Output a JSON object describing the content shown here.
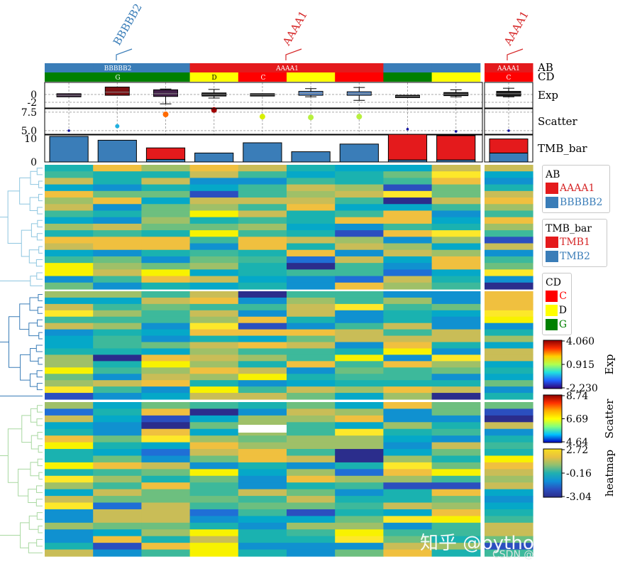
{
  "chart_data": {
    "type": "heatmap",
    "columns": 10,
    "column_groups": [
      {
        "name": "BBBBB2",
        "n": 3,
        "color": "#3a7db8"
      },
      {
        "name": "AAAA1",
        "n": 6,
        "color": "#e41a1c"
      },
      {
        "name": "AAAA1",
        "n": 1,
        "color": "#e41a1c",
        "split": true
      }
    ],
    "top_labels": [
      "BBBBB2",
      "AAAA1",
      "AAAA1"
    ],
    "annotation_rows": [
      "AB",
      "CD",
      "Exp",
      "Scatter",
      "TMB_bar"
    ],
    "AB": [
      "BBBBB2",
      "BBBBB2",
      "BBBBB2",
      "AAAA1",
      "AAAA1",
      "AAAA1",
      "AAAA1",
      "BBBBB2",
      "BBBBB2",
      "AAAA1"
    ],
    "CD": [
      "G",
      "G",
      "G",
      "D",
      "C",
      "D",
      "C",
      "G",
      "D",
      "C"
    ],
    "AB_labels_shown": [
      "BBBBB2",
      "AAAA1",
      "AAAA1"
    ],
    "CD_labels_shown": [
      "G",
      "D",
      "C",
      "C"
    ],
    "Exp": {
      "yticks": [
        "0",
        "-2"
      ],
      "boxes": [
        {
          "q1": -0.6,
          "median": -0.2,
          "q3": 0.2,
          "color": "#3a1f3d"
        },
        {
          "q1": -0.2,
          "median": 0.6,
          "q3": 1.9,
          "color": "#7a0f12"
        },
        {
          "q1": -0.5,
          "median": 0.2,
          "q3": 1.2,
          "lo": -2.4,
          "hi": 1.4,
          "color": "#44224a"
        },
        {
          "q1": -0.4,
          "median": 0.0,
          "q3": 0.4,
          "lo": -0.9,
          "hi": 1.3,
          "color": "#1a1a1a"
        },
        {
          "q1": -0.4,
          "median": -0.1,
          "q3": 0.2,
          "color": "#1a1a1a"
        },
        {
          "q1": -0.2,
          "median": 0.3,
          "q3": 0.8,
          "lo": -0.6,
          "hi": 1.5,
          "color": "#5a8ed0"
        },
        {
          "q1": -0.2,
          "median": 0.2,
          "q3": 0.7,
          "lo": -1.5,
          "hi": 1.8,
          "color": "#5a8ed0"
        },
        {
          "q1": -0.8,
          "median": -0.5,
          "q3": -0.2,
          "color": "#1a1a1a"
        },
        {
          "q1": -0.3,
          "median": 0.1,
          "q3": 0.5,
          "lo": -0.6,
          "hi": 1.2,
          "color": "#1a1a1a"
        },
        {
          "q1": -0.4,
          "median": 0.2,
          "q3": 0.8,
          "lo": -0.6,
          "hi": 1.6,
          "color": "#1a1a1a"
        }
      ]
    },
    "Scatter": {
      "yticks": [
        "7.5",
        "5.0"
      ],
      "values": [
        5.0,
        5.6,
        7.2,
        7.8,
        6.9,
        6.8,
        6.9,
        5.2,
        4.9,
        5.0
      ],
      "colors": [
        "#1010a0",
        "#20b0e0",
        "#ff6a00",
        "#a00000",
        "#d8f000",
        "#b8f040",
        "#b8f040",
        "#1010a0",
        "#1010a0",
        "#1010a0"
      ]
    },
    "TMB_bar": {
      "yticks": [
        "10",
        "0"
      ],
      "series": [
        {
          "name": "TMB1",
          "color": "#e41a1c"
        },
        {
          "name": "TMB2",
          "color": "#3a7db8"
        }
      ],
      "TMB2": [
        10,
        8.5,
        1.0,
        3.5,
        7.5,
        4.0,
        7.0,
        0.8,
        0.8,
        3.5
      ],
      "TMB1": [
        0,
        0,
        4.5,
        0,
        0,
        0,
        0,
        10,
        9.5,
        5.5
      ]
    },
    "heatmap": {
      "row_blocks": [
        19,
        17,
        23
      ],
      "range": [
        -3.04,
        2.72
      ]
    },
    "legends": {
      "AB": {
        "title": "AB",
        "items": [
          {
            "label": "AAAA1",
            "color": "#e41a1c"
          },
          {
            "label": "BBBBB2",
            "color": "#3a7db8"
          }
        ]
      },
      "TMB_bar": {
        "title": "TMB_bar",
        "items": [
          {
            "label": "TMB1",
            "color": "#e41a1c"
          },
          {
            "label": "TMB2",
            "color": "#3a7db8"
          }
        ]
      },
      "CD": {
        "title": "CD",
        "items": [
          {
            "label": "C",
            "color": "#ff0000"
          },
          {
            "label": "D",
            "color": "#ffff00"
          },
          {
            "label": "G",
            "color": "#008000"
          }
        ]
      }
    },
    "colorbars": [
      {
        "title": "Exp",
        "ticks": [
          "4.060",
          "0.915",
          "-2.230"
        ]
      },
      {
        "title": "Scatter",
        "ticks": [
          "8.74",
          "6.69",
          "4.64"
        ]
      },
      {
        "title": "heatmap",
        "ticks": [
          "2.72",
          "-0.16",
          "-3.04"
        ]
      }
    ]
  },
  "watermark": {
    "main": "知乎 @pythonic生物人",
    "sub": "CSDN @"
  }
}
